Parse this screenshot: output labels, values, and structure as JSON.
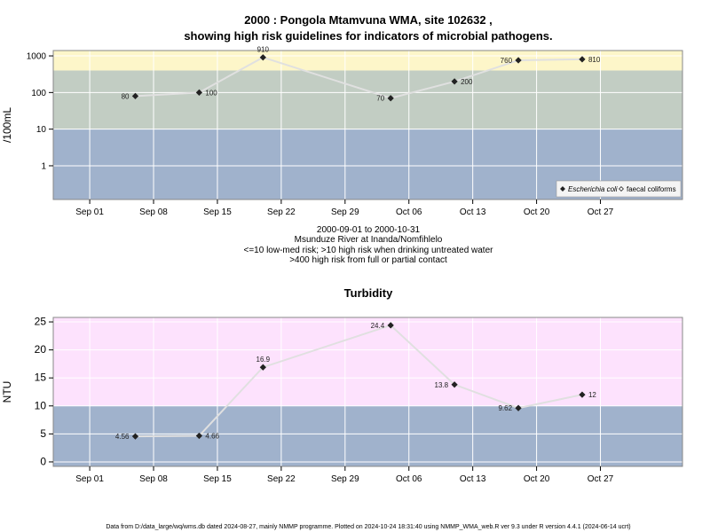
{
  "title_line1": "2000 : Pongola Mtamvuna WMA, site 102632 ,",
  "title_line2": "showing high risk guidelines for indicators of microbial pathogens.",
  "subtitle_lines": [
    "2000-09-01 to 2000-10-31",
    "Msunduze River at Inanda/Nomfihlelo",
    "<=10 low-med risk; >10 high risk when drinking untreated water",
    ">400 high risk from full or partial contact"
  ],
  "footer": "Data from D:/data_large/wq/wms.db dated 2024-08-27, mainly NMMP programme. Plotted on 2024-10-24 18:31:40 using NMMP_WMA_web.R ver 9.3 under R version 4.4.1 (2024-06-14 ucrt)",
  "colors": {
    "band_low": "#a0b2cc",
    "band_mid": "#c2cdc3",
    "band_high_microbe": "#fdf6c9",
    "band_high_turbidity": "#fde2fd",
    "series_line": "#e0e0e0",
    "point": "#222222",
    "grid": "#ffffff"
  },
  "chart_data": [
    {
      "type": "line",
      "title": "",
      "ylabel": "/100mL",
      "yscale": "log",
      "ylim": [
        0.12,
        1400
      ],
      "yticks": [
        1,
        10,
        100,
        1000
      ],
      "ytick_labels": [
        "1",
        "10",
        "100",
        "1000"
      ],
      "xlim": [
        "2000-08-28",
        "2000-11-05"
      ],
      "xticks": [
        "2000-09-01",
        "2000-09-08",
        "2000-09-15",
        "2000-09-22",
        "2000-09-29",
        "2000-10-06",
        "2000-10-13",
        "2000-10-20",
        "2000-10-27"
      ],
      "xtick_labels": [
        "Sep 01",
        "Sep 08",
        "Sep 15",
        "Sep 22",
        "Sep 29",
        "Oct 06",
        "Oct 13",
        "Oct 20",
        "Oct 27"
      ],
      "bands": [
        {
          "from": 0.12,
          "to": 10,
          "color": "band_low"
        },
        {
          "from": 10,
          "to": 400,
          "color": "band_mid"
        },
        {
          "from": 400,
          "to": 1400,
          "color": "band_high_microbe"
        }
      ],
      "grid": true,
      "legend_position": "bottom-right",
      "legend": [
        {
          "label": "Escherichia coli",
          "marker": "filled-diamond",
          "italic": true
        },
        {
          "label": "faecal coliforms",
          "marker": "open-diamond",
          "italic": false
        }
      ],
      "series": [
        {
          "name": "Escherichia coli",
          "points": [
            {
              "x": "2000-09-06",
              "y": 80,
              "label": "80",
              "label_side": "left"
            },
            {
              "x": "2000-09-13",
              "y": 100,
              "label": "100",
              "label_side": "right"
            },
            {
              "x": "2000-09-20",
              "y": 910,
              "label": "910",
              "label_side": "above"
            },
            {
              "x": "2000-10-04",
              "y": 70,
              "label": "70",
              "label_side": "left"
            },
            {
              "x": "2000-10-11",
              "y": 200,
              "label": "200",
              "label_side": "right"
            },
            {
              "x": "2000-10-18",
              "y": 760,
              "label": "760",
              "label_side": "left"
            },
            {
              "x": "2000-10-25",
              "y": 810,
              "label": "810",
              "label_side": "right"
            }
          ]
        }
      ]
    },
    {
      "type": "line",
      "title": "Turbidity",
      "ylabel": "NTU",
      "yscale": "linear",
      "ylim": [
        -0.8,
        25.8
      ],
      "yticks": [
        0,
        5,
        10,
        15,
        20,
        25
      ],
      "ytick_labels": [
        "0",
        "5",
        "10",
        "15",
        "20",
        "25"
      ],
      "xlim": [
        "2000-08-28",
        "2000-11-05"
      ],
      "xticks": [
        "2000-09-01",
        "2000-09-08",
        "2000-09-15",
        "2000-09-22",
        "2000-09-29",
        "2000-10-06",
        "2000-10-13",
        "2000-10-20",
        "2000-10-27"
      ],
      "xtick_labels": [
        "Sep 01",
        "Sep 08",
        "Sep 15",
        "Sep 22",
        "Sep 29",
        "Oct 06",
        "Oct 13",
        "Oct 20",
        "Oct 27"
      ],
      "bands": [
        {
          "from": -0.8,
          "to": 10,
          "color": "band_low"
        },
        {
          "from": 10,
          "to": 25.8,
          "color": "band_high_turbidity"
        }
      ],
      "grid": true,
      "series": [
        {
          "name": "",
          "points": [
            {
              "x": "2000-09-06",
              "y": 4.56,
              "label": "4.56",
              "label_side": "left"
            },
            {
              "x": "2000-09-13",
              "y": 4.66,
              "label": "4.66",
              "label_side": "right"
            },
            {
              "x": "2000-09-20",
              "y": 16.9,
              "label": "16.9",
              "label_side": "above"
            },
            {
              "x": "2000-10-04",
              "y": 24.4,
              "label": "24.4",
              "label_side": "left"
            },
            {
              "x": "2000-10-11",
              "y": 13.8,
              "label": "13.8",
              "label_side": "left"
            },
            {
              "x": "2000-10-18",
              "y": 9.62,
              "label": "9.62",
              "label_side": "left"
            },
            {
              "x": "2000-10-25",
              "y": 12,
              "label": "12",
              "label_side": "right"
            }
          ]
        }
      ]
    }
  ]
}
